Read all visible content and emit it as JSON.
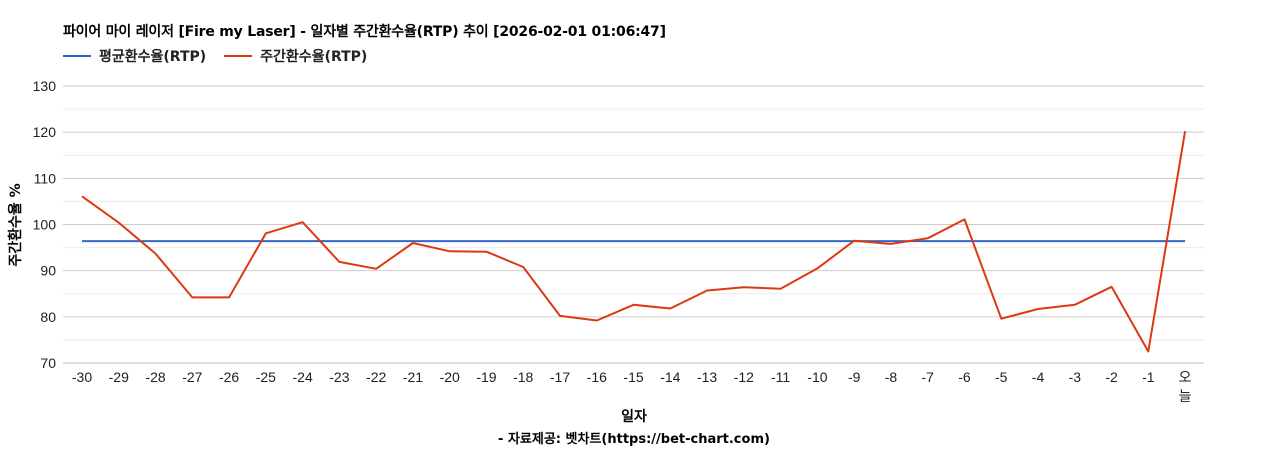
{
  "header": {
    "title": "파이어 마이 레이저 [Fire my Laser] - 일자별 주간환수율(RTP) 추이 [2026-02-01 01:06:47]"
  },
  "legend": [
    {
      "label": "평균환수율(RTP)",
      "color": "#3366cc"
    },
    {
      "label": "주간환수율(RTP)",
      "color": "#dc3912"
    }
  ],
  "footer": {
    "xlabel": "일자",
    "source": "- 자료제공: 벳차트(https://bet-chart.com)"
  },
  "chart_data": {
    "type": "line",
    "title": "파이어 마이 레이저 [Fire my Laser] - 일자별 주간환수율(RTP) 추이 [2026-02-01 01:06:47]",
    "xlabel": "일자",
    "ylabel": "주간환수율 %",
    "ylim": [
      70,
      130
    ],
    "yticks": [
      70,
      80,
      90,
      100,
      110,
      120,
      130
    ],
    "grid": true,
    "legend_position": "top",
    "categories": [
      "-30",
      "-29",
      "-28",
      "-27",
      "-26",
      "-25",
      "-24",
      "-23",
      "-22",
      "-21",
      "-20",
      "-19",
      "-18",
      "-17",
      "-16",
      "-15",
      "-14",
      "-13",
      "-12",
      "-11",
      "-10",
      "-9",
      "-8",
      "-7",
      "-6",
      "-5",
      "-4",
      "-3",
      "-2",
      "-1",
      "오늘"
    ],
    "series": [
      {
        "name": "평균환수율(RTP)",
        "color": "#3366cc",
        "values": [
          96.4,
          96.4,
          96.4,
          96.4,
          96.4,
          96.4,
          96.4,
          96.4,
          96.4,
          96.4,
          96.4,
          96.4,
          96.4,
          96.4,
          96.4,
          96.4,
          96.4,
          96.4,
          96.4,
          96.4,
          96.4,
          96.4,
          96.4,
          96.4,
          96.4,
          96.4,
          96.4,
          96.4,
          96.4,
          96.4,
          96.4
        ]
      },
      {
        "name": "주간환수율(RTP)",
        "color": "#dc3912",
        "values": [
          106.1,
          100.4,
          93.7,
          84.2,
          84.2,
          98.1,
          100.5,
          91.9,
          90.4,
          96.0,
          94.2,
          94.1,
          90.8,
          80.2,
          79.2,
          82.6,
          81.8,
          85.7,
          86.4,
          86.1,
          90.5,
          96.5,
          95.8,
          97.0,
          101.1,
          79.6,
          81.7,
          82.6,
          86.5,
          72.5,
          120.2
        ]
      }
    ]
  }
}
